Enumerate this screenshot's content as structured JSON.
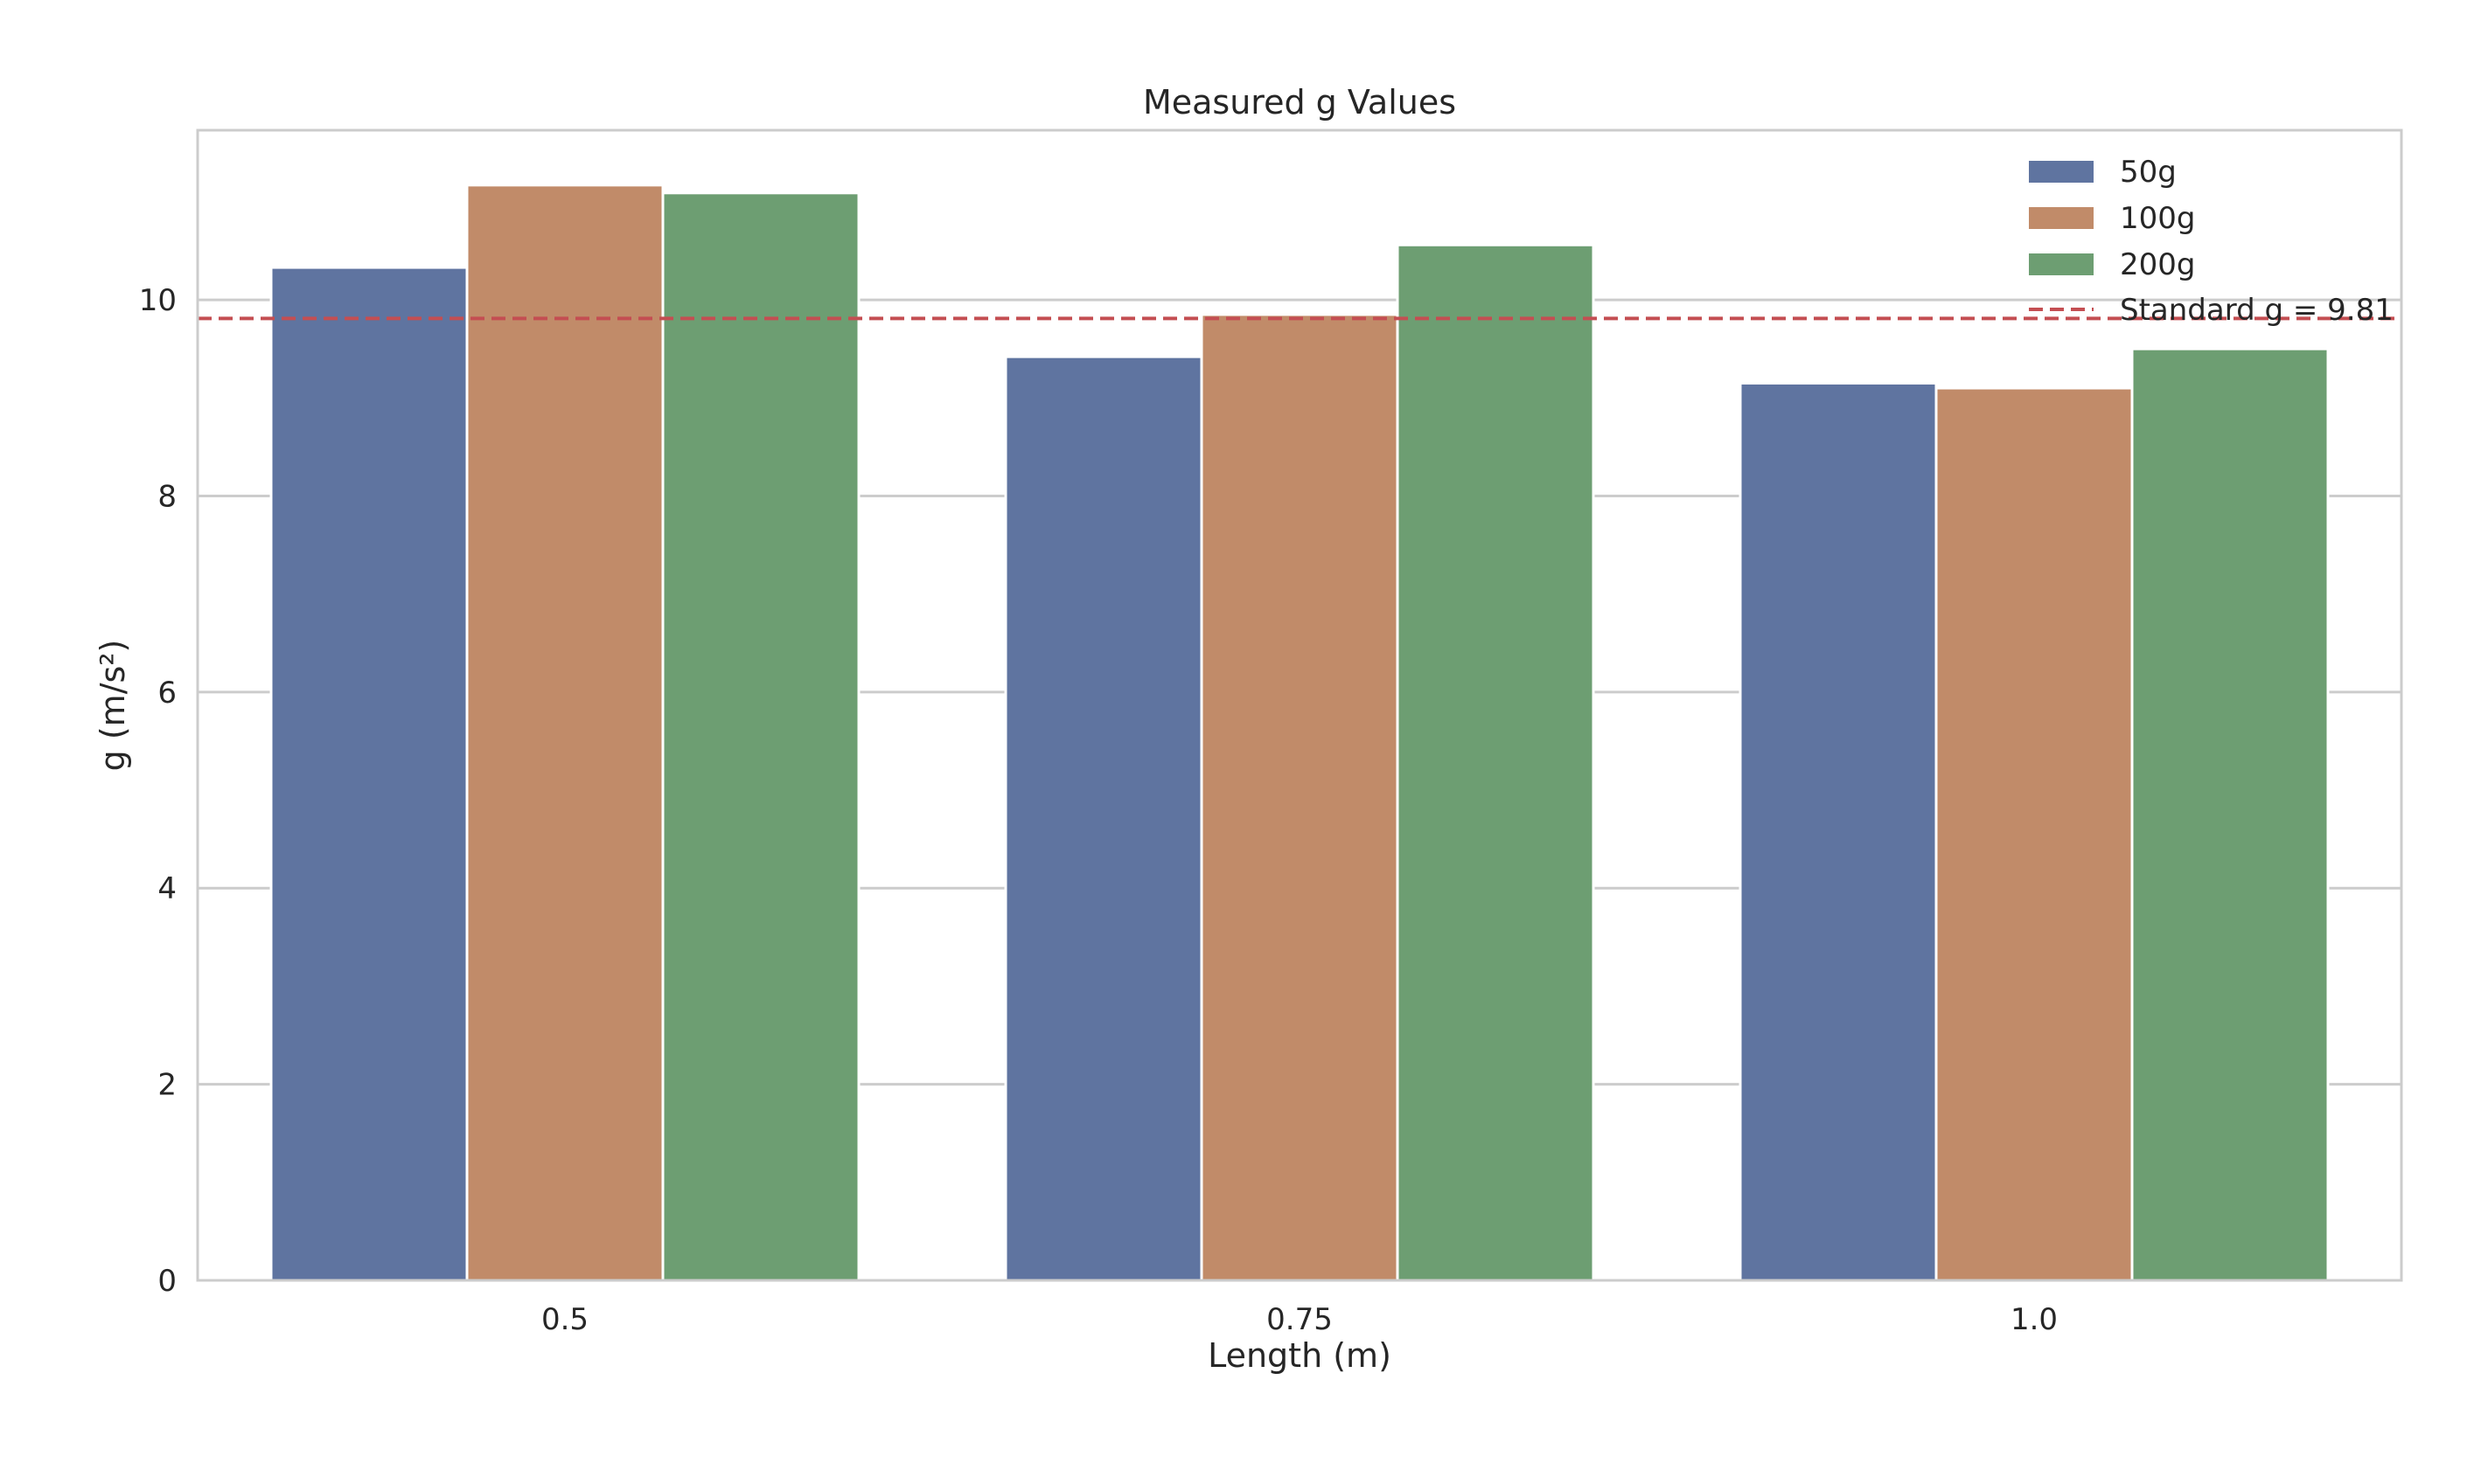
{
  "chart_data": {
    "type": "bar",
    "title": "Measured g Values",
    "xlabel": "Length (m)",
    "ylabel": "g (m/s²)",
    "categories": [
      "0.5",
      "0.75",
      "1.0"
    ],
    "series": [
      {
        "name": "50g",
        "color": "#5f74a0",
        "values": [
          10.33,
          9.42,
          9.15
        ]
      },
      {
        "name": "100g",
        "color": "#c18b69",
        "values": [
          11.17,
          9.85,
          9.1
        ]
      },
      {
        "name": "200g",
        "color": "#6d9e72",
        "values": [
          11.09,
          10.56,
          9.5
        ]
      }
    ],
    "reference_line": {
      "label": "Standard g = 9.81",
      "value": 9.81,
      "color": "#c44e52",
      "style": "dashed"
    },
    "ylim": [
      0,
      11.73
    ],
    "yticks": [
      "0",
      "2",
      "4",
      "6",
      "8",
      "10"
    ],
    "ytick_values": [
      0,
      2,
      4,
      6,
      8,
      10
    ],
    "grid": true,
    "legend_position": "top-right"
  }
}
